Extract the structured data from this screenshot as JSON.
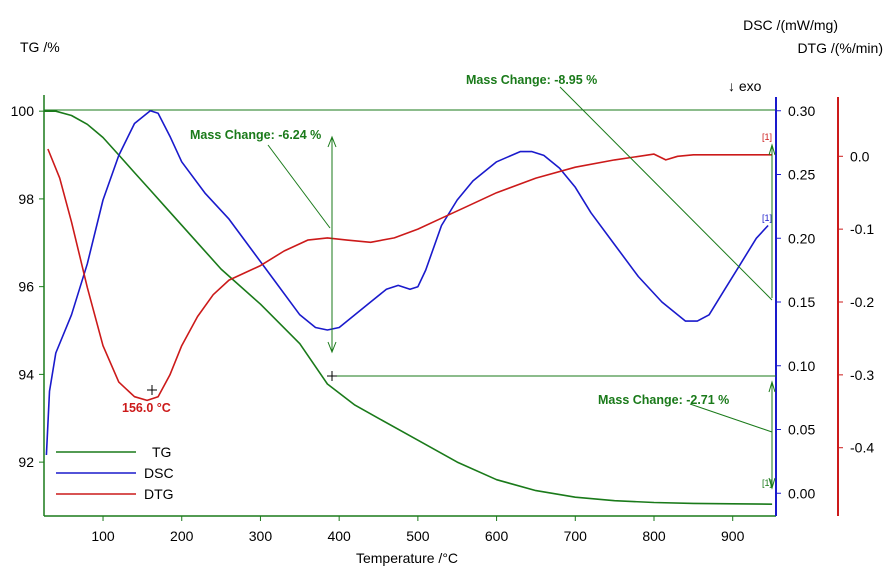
{
  "chart_data": {
    "type": "line",
    "xlabel": "Temperature /°C",
    "xlim": [
      25,
      955
    ],
    "x_ticks": [
      100,
      200,
      300,
      400,
      500,
      600,
      700,
      800,
      900
    ],
    "axes": {
      "tg": {
        "label": "TG /%",
        "min": 91.0,
        "max": 100.3,
        "ticks": [
          92,
          94,
          96,
          98,
          100
        ],
        "color": "#000000"
      },
      "dsc": {
        "label": "DSC /(mW/mg)",
        "min": -0.01,
        "max": 0.31,
        "ticks": [
          0.0,
          0.05,
          0.1,
          0.15,
          0.2,
          0.25,
          0.3
        ],
        "color": "#0000cc"
      },
      "dtg": {
        "label": "DTG /(%/min)",
        "min": -0.48,
        "max": 0.08,
        "ticks": [
          0.0,
          -0.1,
          -0.2,
          -0.3,
          -0.4
        ],
        "color": "#cc0000"
      }
    },
    "series": [
      {
        "name": "TG",
        "axis": "tg",
        "color": "#1a7a1a",
        "x": [
          25,
          40,
          60,
          80,
          100,
          120,
          140,
          160,
          180,
          200,
          220,
          250,
          300,
          350,
          385,
          420,
          450,
          500,
          550,
          600,
          650,
          700,
          750,
          800,
          850,
          900,
          950
        ],
        "y": [
          100.0,
          100.0,
          99.9,
          99.7,
          99.4,
          99.0,
          98.6,
          98.2,
          97.8,
          97.4,
          97.0,
          96.4,
          95.6,
          94.7,
          93.78,
          93.3,
          93.0,
          92.5,
          92.0,
          91.6,
          91.35,
          91.2,
          91.12,
          91.08,
          91.06,
          91.05,
          91.04
        ]
      },
      {
        "name": "DSC",
        "axis": "dsc",
        "color": "#1a1acc",
        "x": [
          28,
          32,
          40,
          60,
          80,
          100,
          120,
          140,
          160,
          170,
          185,
          200,
          230,
          260,
          290,
          320,
          350,
          370,
          385,
          400,
          420,
          440,
          460,
          475,
          490,
          500,
          510,
          530,
          550,
          570,
          600,
          630,
          645,
          660,
          680,
          700,
          720,
          750,
          780,
          810,
          840,
          855,
          870,
          890,
          910,
          930,
          945
        ],
        "y": [
          0.03,
          0.08,
          0.11,
          0.14,
          0.18,
          0.23,
          0.265,
          0.29,
          0.3,
          0.298,
          0.28,
          0.26,
          0.235,
          0.215,
          0.19,
          0.165,
          0.14,
          0.13,
          0.128,
          0.13,
          0.14,
          0.15,
          0.16,
          0.163,
          0.16,
          0.162,
          0.175,
          0.21,
          0.23,
          0.245,
          0.26,
          0.268,
          0.268,
          0.265,
          0.255,
          0.24,
          0.22,
          0.195,
          0.17,
          0.15,
          0.135,
          0.135,
          0.14,
          0.16,
          0.18,
          0.2,
          0.21
        ]
      },
      {
        "name": "DTG",
        "axis": "dtg",
        "color": "#cc1a1a",
        "x": [
          30,
          45,
          60,
          80,
          100,
          120,
          140,
          156,
          170,
          185,
          200,
          220,
          240,
          260,
          280,
          300,
          330,
          360,
          385,
          410,
          440,
          470,
          500,
          530,
          560,
          600,
          650,
          700,
          750,
          800,
          815,
          830,
          850,
          900,
          950
        ],
        "y": [
          0.01,
          -0.03,
          -0.09,
          -0.18,
          -0.26,
          -0.31,
          -0.33,
          -0.335,
          -0.33,
          -0.3,
          -0.26,
          -0.22,
          -0.19,
          -0.17,
          -0.16,
          -0.15,
          -0.13,
          -0.115,
          -0.112,
          -0.115,
          -0.118,
          -0.112,
          -0.1,
          -0.085,
          -0.07,
          -0.05,
          -0.03,
          -0.015,
          -0.005,
          0.003,
          -0.005,
          0.0,
          0.002,
          0.002,
          0.002
        ]
      }
    ],
    "annotations": {
      "exo": "↓ exo",
      "peak": "156.0 °C",
      "mass_change_1": "Mass Change: -6.24 %",
      "mass_change_2": "Mass Change: -8.95 %",
      "mass_change_3": "Mass Change: -2.71 %",
      "marker": "[1]"
    },
    "legend_placement": "bottom-left",
    "grid": false
  }
}
